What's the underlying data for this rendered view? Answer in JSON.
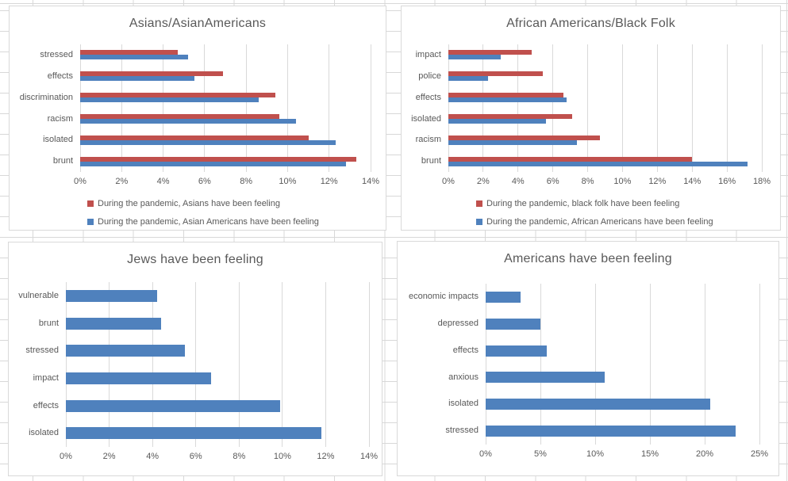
{
  "colors": {
    "series_red": "#C0504D",
    "series_blue": "#4F81BD",
    "text": "#595959",
    "chart_gridline": "#D9D9D9",
    "sheet_gridline": "#D8D8D8"
  },
  "chart_data": [
    {
      "type": "bar",
      "orientation": "horizontal",
      "title": "Asians/AsianAmericans",
      "categories": [
        "stressed",
        "effects",
        "discrimination",
        "racism",
        "isolated",
        "brunt"
      ],
      "series": [
        {
          "name": "During the pandemic, Asians have been feeling",
          "color_key": "series_red",
          "values": [
            4.7,
            6.9,
            9.4,
            9.6,
            11.0,
            13.3
          ]
        },
        {
          "name": "During the pandemic, Asian Americans have been feeling",
          "color_key": "series_blue",
          "values": [
            5.2,
            5.5,
            8.6,
            10.4,
            12.3,
            12.8
          ]
        }
      ],
      "xlim": [
        0,
        14
      ],
      "tick_step": 2,
      "tick_labels": [
        "0%",
        "2%",
        "4%",
        "6%",
        "8%",
        "10%",
        "12%",
        "14%"
      ],
      "grid": true,
      "legend_position": "bottom"
    },
    {
      "type": "bar",
      "orientation": "horizontal",
      "title": "African Americans/Black Folk",
      "categories": [
        "impact",
        "police",
        "effects",
        "isolated",
        "racism",
        "brunt"
      ],
      "series": [
        {
          "name": "During the pandemic, black folk have been feeling",
          "color_key": "series_red",
          "values": [
            4.8,
            5.4,
            6.6,
            7.1,
            8.7,
            14.0
          ]
        },
        {
          "name": "During the pandemic, African Americans have been feeling",
          "color_key": "series_blue",
          "values": [
            3.0,
            2.3,
            6.8,
            5.6,
            7.4,
            17.2
          ]
        }
      ],
      "xlim": [
        0,
        18
      ],
      "tick_step": 2,
      "tick_labels": [
        "0%",
        "2%",
        "4%",
        "6%",
        "8%",
        "10%",
        "12%",
        "14%",
        "16%",
        "18%"
      ],
      "grid": true,
      "legend_position": "bottom"
    },
    {
      "type": "bar",
      "orientation": "horizontal",
      "title": "Jews have been feeling",
      "categories": [
        "vulnerable",
        "brunt",
        "stressed",
        "impact",
        "effects",
        "isolated"
      ],
      "series": [
        {
          "color_key": "series_blue",
          "values": [
            4.2,
            4.4,
            5.5,
            6.7,
            9.9,
            11.8
          ]
        }
      ],
      "xlim": [
        0,
        14
      ],
      "tick_step": 2,
      "tick_labels": [
        "0%",
        "2%",
        "4%",
        "6%",
        "8%",
        "10%",
        "12%",
        "14%"
      ],
      "grid": true,
      "legend_position": "none"
    },
    {
      "type": "bar",
      "orientation": "horizontal",
      "title": "Americans have been feeling",
      "categories": [
        "economic impacts",
        "depressed",
        "effects",
        "anxious",
        "isolated",
        "stressed"
      ],
      "series": [
        {
          "color_key": "series_blue",
          "values": [
            3.2,
            5.0,
            5.6,
            10.9,
            20.5,
            22.8
          ]
        }
      ],
      "xlim": [
        0,
        25
      ],
      "tick_step": 5,
      "tick_labels": [
        "0%",
        "5%",
        "10%",
        "15%",
        "20%",
        "25%"
      ],
      "grid": true,
      "legend_position": "none"
    }
  ]
}
